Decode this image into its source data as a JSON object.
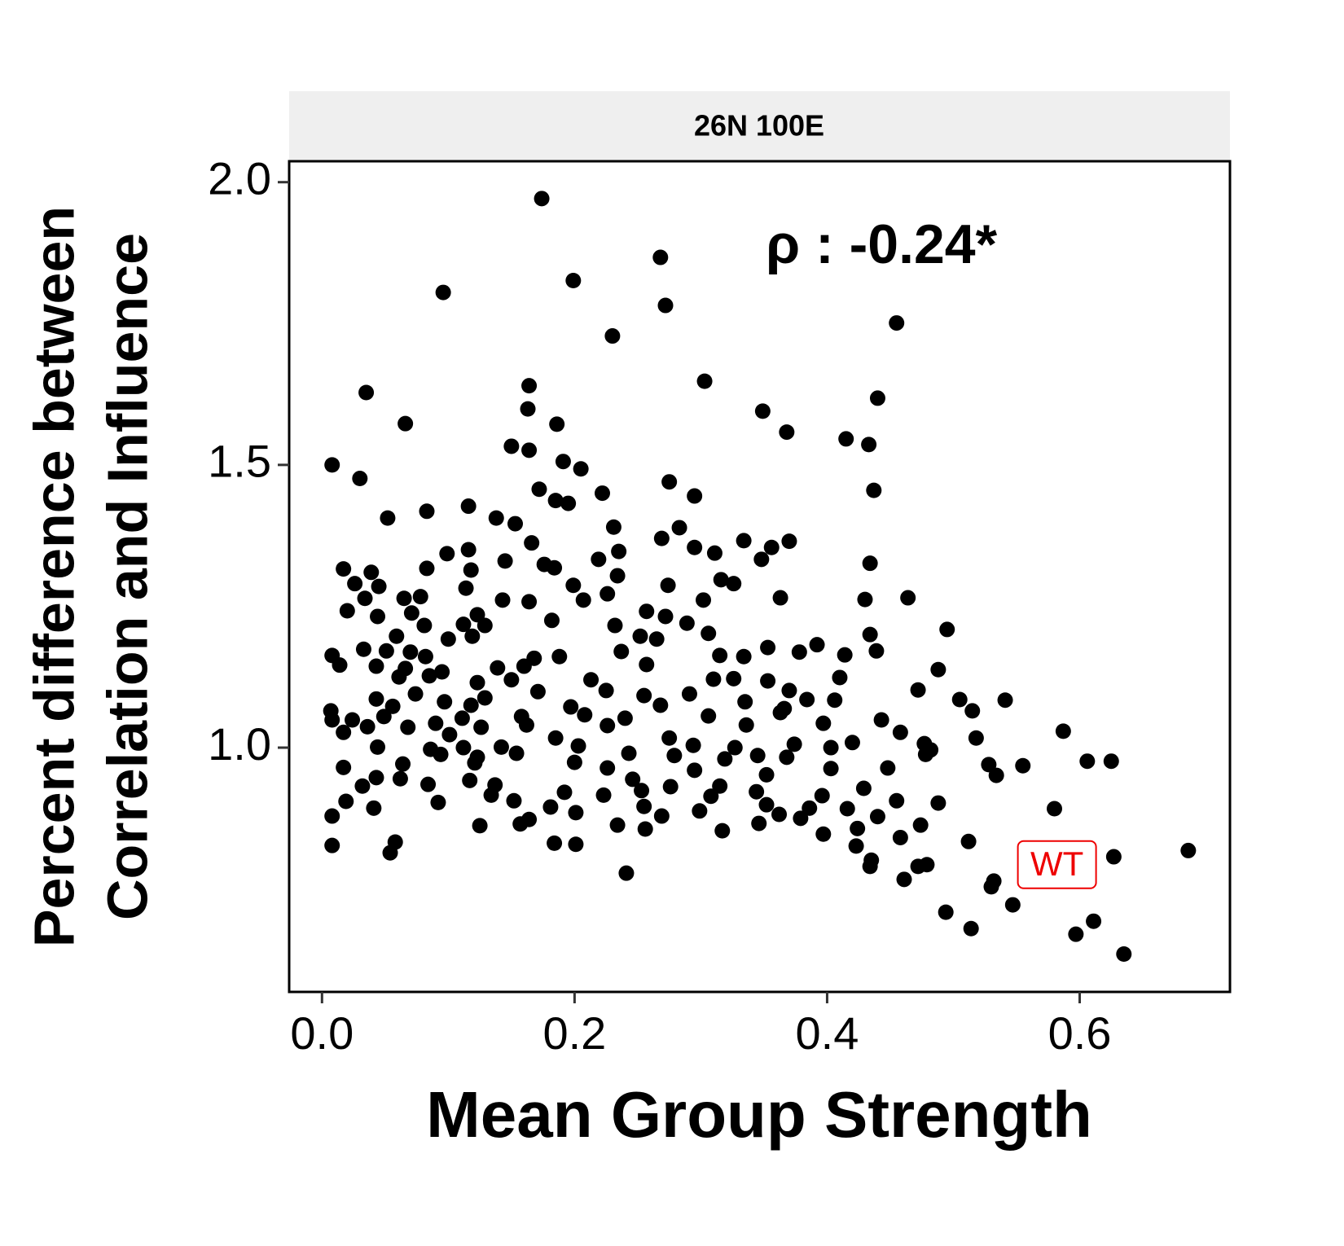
{
  "chart_data": {
    "type": "scatter",
    "facet_label": "26N 100E",
    "xlabel": "Mean Group Strength",
    "ylabel": [
      "Percent difference between",
      "Correlation and Influence"
    ],
    "annotations": [
      {
        "text": "ρ : -0.24*",
        "x": 0.443,
        "y": 1.883
      },
      {
        "text": "WT",
        "x": 0.582,
        "y": 0.793,
        "color": "#ee0000",
        "boxed": true
      }
    ],
    "color": "#000000",
    "xlim": [
      -0.026,
      0.719
    ],
    "ylim": [
      0.568,
      2.037
    ],
    "xticks": [
      {
        "value": 0,
        "label": "0.0"
      },
      0.2,
      0.4,
      0.6
    ],
    "yticks": [
      {
        "value": 1,
        "label": "1.0"
      },
      1.5,
      {
        "value": 2,
        "label": "2.0"
      }
    ],
    "x": [
      0.174,
      0.268,
      0.199,
      0.096,
      0.272,
      0.455,
      0.23,
      0.303,
      0.164,
      0.035,
      0.44,
      0.163,
      0.349,
      0.066,
      0.186,
      0.368,
      0.415,
      0.433,
      0.15,
      0.164,
      0.008,
      0.191,
      0.205,
      0.03,
      0.275,
      0.172,
      0.437,
      0.222,
      0.295,
      0.185,
      0.195,
      0.116,
      0.083,
      0.052,
      0.138,
      0.153,
      0.231,
      0.283,
      0.269,
      0.166,
      0.334,
      0.37,
      0.356,
      0.116,
      0.295,
      0.099,
      0.235,
      0.311,
      0.145,
      0.219,
      0.348,
      0.434,
      0.017,
      0.118,
      0.083,
      0.176,
      0.184,
      0.039,
      0.234,
      0.316,
      0.326,
      0.026,
      0.045,
      0.114,
      0.199,
      0.274,
      0.034,
      0.065,
      0.078,
      0.143,
      0.164,
      0.207,
      0.226,
      0.43,
      0.464,
      0.363,
      0.302,
      0.02,
      0.044,
      0.071,
      0.123,
      0.182,
      0.257,
      0.272,
      0.289,
      0.081,
      0.112,
      0.129,
      0.232,
      0.306,
      0.495,
      0.059,
      0.1,
      0.119,
      0.252,
      0.265,
      0.434,
      0.353,
      0.378,
      0.392,
      0.439,
      0.008,
      0.033,
      0.051,
      0.07,
      0.082,
      0.168,
      0.188,
      0.237,
      0.315,
      0.334,
      0.414,
      0.014,
      0.043,
      0.066,
      0.095,
      0.139,
      0.16,
      0.257,
      0.488,
      0.061,
      0.085,
      0.123,
      0.15,
      0.213,
      0.31,
      0.326,
      0.353,
      0.41,
      0.37,
      0.472,
      0.043,
      0.074,
      0.097,
      0.129,
      0.171,
      0.225,
      0.255,
      0.291,
      0.335,
      0.384,
      0.406,
      0.505,
      0.541,
      0.007,
      0.056,
      0.118,
      0.197,
      0.268,
      0.366,
      0.515,
      0.049,
      0.111,
      0.158,
      0.208,
      0.24,
      0.306,
      0.363,
      0.008,
      0.024,
      0.09,
      0.443,
      0.397,
      0.036,
      0.068,
      0.126,
      0.162,
      0.226,
      0.336,
      0.017,
      0.101,
      0.185,
      0.275,
      0.458,
      0.587,
      0.518,
      0.044,
      0.086,
      0.112,
      0.142,
      0.203,
      0.294,
      0.327,
      0.374,
      0.403,
      0.42,
      0.477,
      0.482,
      0.094,
      0.123,
      0.154,
      0.243,
      0.279,
      0.319,
      0.345,
      0.368,
      0.478,
      0.606,
      0.064,
      0.121,
      0.2,
      0.528,
      0.555,
      0.017,
      0.226,
      0.295,
      0.403,
      0.448,
      0.625,
      0.043,
      0.062,
      0.117,
      0.246,
      0.352,
      0.534,
      0.032,
      0.084,
      0.137,
      0.276,
      0.315,
      0.429,
      0.253,
      0.344,
      0.192,
      0.223,
      0.134,
      0.019,
      0.092,
      0.152,
      0.308,
      0.396,
      0.455,
      0.488,
      0.58,
      0.041,
      0.181,
      0.255,
      0.299,
      0.352,
      0.386,
      0.416,
      0.008,
      0.201,
      0.269,
      0.362,
      0.44,
      0.164,
      0.379,
      0.125,
      0.157,
      0.234,
      0.317,
      0.346,
      0.424,
      0.474,
      0.256,
      0.397,
      0.458,
      0.512,
      0.008,
      0.058,
      0.184,
      0.201,
      0.423,
      0.054,
      0.627,
      0.686,
      0.435,
      0.434,
      0.472,
      0.479,
      0.241,
      0.461,
      0.532,
      0.53,
      0.547,
      0.494,
      0.611,
      0.514,
      0.597,
      0.635
    ],
    "values": [
      1.971,
      1.867,
      1.826,
      1.805,
      1.782,
      1.751,
      1.728,
      1.648,
      1.64,
      1.628,
      1.618,
      1.599,
      1.595,
      1.573,
      1.572,
      1.558,
      1.546,
      1.536,
      1.533,
      1.526,
      1.5,
      1.506,
      1.493,
      1.476,
      1.47,
      1.457,
      1.455,
      1.45,
      1.445,
      1.437,
      1.432,
      1.427,
      1.418,
      1.406,
      1.406,
      1.396,
      1.39,
      1.389,
      1.37,
      1.362,
      1.366,
      1.365,
      1.354,
      1.35,
      1.354,
      1.343,
      1.347,
      1.344,
      1.33,
      1.333,
      1.333,
      1.326,
      1.316,
      1.314,
      1.317,
      1.324,
      1.318,
      1.31,
      1.304,
      1.297,
      1.29,
      1.29,
      1.285,
      1.282,
      1.287,
      1.287,
      1.264,
      1.264,
      1.267,
      1.261,
      1.258,
      1.261,
      1.272,
      1.262,
      1.265,
      1.265,
      1.261,
      1.242,
      1.232,
      1.238,
      1.235,
      1.225,
      1.241,
      1.232,
      1.22,
      1.216,
      1.218,
      1.216,
      1.216,
      1.202,
      1.209,
      1.197,
      1.192,
      1.197,
      1.197,
      1.192,
      1.2,
      1.177,
      1.169,
      1.182,
      1.171,
      1.163,
      1.174,
      1.171,
      1.169,
      1.161,
      1.158,
      1.161,
      1.17,
      1.163,
      1.161,
      1.164,
      1.146,
      1.144,
      1.14,
      1.134,
      1.141,
      1.144,
      1.147,
      1.138,
      1.125,
      1.127,
      1.115,
      1.12,
      1.12,
      1.121,
      1.122,
      1.118,
      1.124,
      1.101,
      1.102,
      1.086,
      1.095,
      1.081,
      1.088,
      1.099,
      1.101,
      1.092,
      1.095,
      1.081,
      1.085,
      1.084,
      1.085,
      1.084,
      1.065,
      1.073,
      1.075,
      1.072,
      1.075,
      1.069,
      1.065,
      1.055,
      1.052,
      1.055,
      1.058,
      1.052,
      1.056,
      1.062,
      1.049,
      1.049,
      1.043,
      1.049,
      1.043,
      1.037,
      1.036,
      1.036,
      1.04,
      1.039,
      1.04,
      1.027,
      1.023,
      1.017,
      1.017,
      1.027,
      1.029,
      1.017,
      1.001,
      0.997,
      1.0,
      1.001,
      1.003,
      1.004,
      1.0,
      1.006,
      1.0,
      1.009,
      1.007,
      0.996,
      0.988,
      0.983,
      0.99,
      0.99,
      0.986,
      0.98,
      0.986,
      0.983,
      0.988,
      0.976,
      0.971,
      0.973,
      0.974,
      0.97,
      0.968,
      0.965,
      0.964,
      0.96,
      0.963,
      0.964,
      0.976,
      0.947,
      0.945,
      0.942,
      0.944,
      0.952,
      0.951,
      0.932,
      0.935,
      0.934,
      0.931,
      0.932,
      0.928,
      0.924,
      0.922,
      0.921,
      0.916,
      0.916,
      0.905,
      0.903,
      0.906,
      0.914,
      0.915,
      0.906,
      0.902,
      0.892,
      0.893,
      0.895,
      0.896,
      0.888,
      0.899,
      0.893,
      0.892,
      0.879,
      0.885,
      0.879,
      0.882,
      0.878,
      0.873,
      0.875,
      0.862,
      0.865,
      0.863,
      0.853,
      0.866,
      0.857,
      0.863,
      0.856,
      0.847,
      0.841,
      0.834,
      0.827,
      0.833,
      0.831,
      0.829,
      0.826,
      0.814,
      0.807,
      0.818,
      0.801,
      0.79,
      0.79,
      0.793,
      0.778,
      0.767,
      0.764,
      0.754,
      0.722,
      0.709,
      0.693,
      0.68,
      0.67,
      0.635
    ]
  }
}
